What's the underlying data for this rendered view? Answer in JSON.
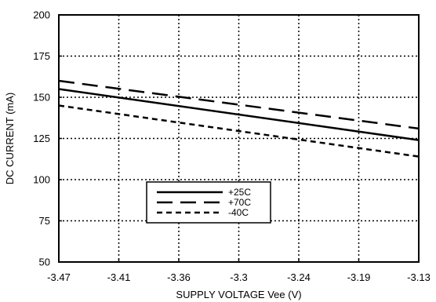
{
  "chart_data": {
    "type": "line",
    "title": "",
    "xlabel": "SUPPLY VOLTAGE Vee (V)",
    "ylabel": "DC CURRENT (mA)",
    "xlim": [
      -3.47,
      -3.13
    ],
    "ylim": [
      50,
      200
    ],
    "x_ticks": [
      "-3.47",
      "-3.41",
      "-3.36",
      "-3.3",
      "-3.24",
      "-3.19",
      "-3.13"
    ],
    "y_ticks": [
      "50",
      "75",
      "100",
      "125",
      "150",
      "175",
      "200"
    ],
    "grid": true,
    "legend_position": "lower-left-center",
    "series": [
      {
        "name": "+25C",
        "style": "solid",
        "x": [
          -3.47,
          -3.13
        ],
        "values": [
          155,
          124
        ]
      },
      {
        "name": "+70C",
        "style": "long-dash",
        "x": [
          -3.47,
          -3.13
        ],
        "values": [
          160,
          131
        ]
      },
      {
        "name": "-40C",
        "style": "short-dash",
        "x": [
          -3.47,
          -3.13
        ],
        "values": [
          145,
          114
        ]
      }
    ]
  }
}
